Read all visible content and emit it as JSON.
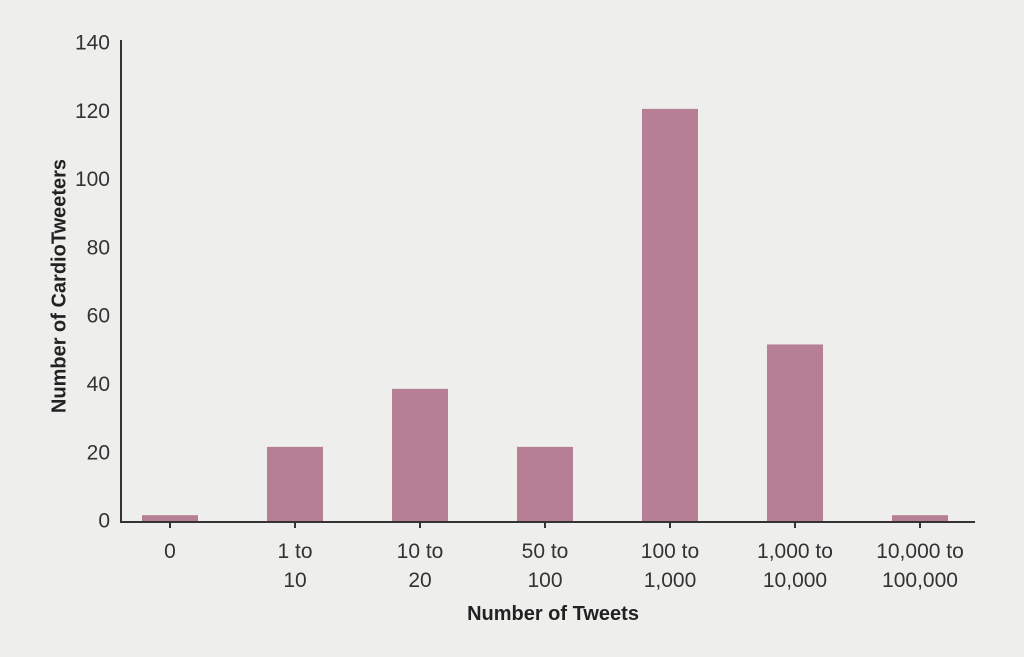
{
  "chart_data": {
    "type": "bar",
    "title": "",
    "xlabel": "Number of Tweets",
    "ylabel": "Number of CardioTweeters",
    "categories": [
      "0",
      "1 to 10",
      "10 to 20",
      "50 to 100",
      "100 to 1,000",
      "1,000 to 10,000",
      "10,000 to 100,000"
    ],
    "category_lines": [
      [
        "0"
      ],
      [
        "1 to",
        "10"
      ],
      [
        "10 to",
        "20"
      ],
      [
        "50 to",
        "100"
      ],
      [
        "100 to",
        "1,000"
      ],
      [
        "1,000 to",
        "10,000"
      ],
      [
        "10,000 to",
        "100,000"
      ]
    ],
    "values": [
      2,
      22,
      39,
      22,
      121,
      52,
      2
    ],
    "ylim": [
      0,
      140
    ],
    "yticks": [
      0,
      20,
      40,
      60,
      80,
      100,
      120,
      140
    ],
    "grid": false,
    "legend": null,
    "colors": {
      "bar": "#b67f93",
      "axis": "#333333",
      "background": "#eeeeec"
    }
  }
}
